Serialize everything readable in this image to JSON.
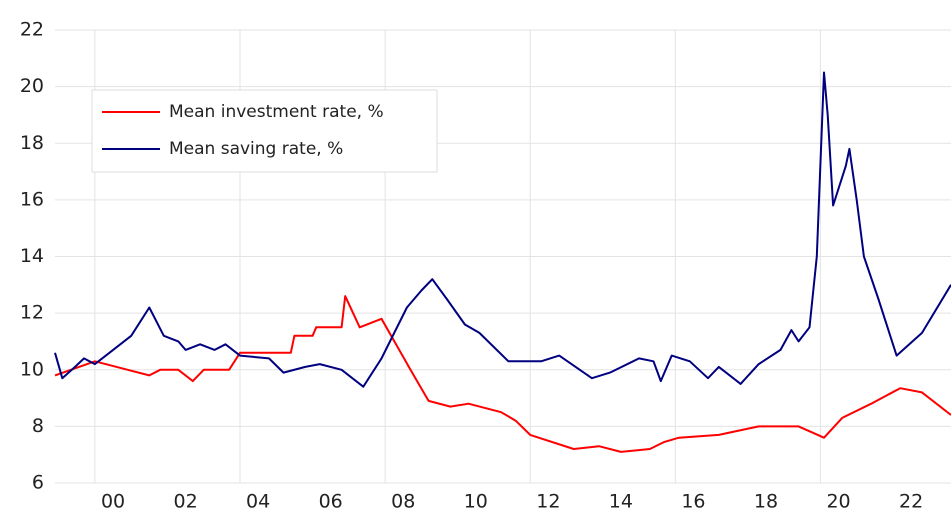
{
  "chart_data": {
    "type": "line",
    "series": [
      {
        "name": "Mean investment rate, %",
        "color": "#ff0000",
        "x": [
          1998.9,
          2000.0,
          2001.5,
          2001.8,
          2002.3,
          2002.7,
          2003.0,
          2003.7,
          2004.0,
          2005.4,
          2005.5,
          2006.0,
          2006.1,
          2006.8,
          2006.9,
          2007.3,
          2007.9,
          2008.3,
          2008.7,
          2009.2,
          2009.8,
          2010.3,
          2011.2,
          2011.6,
          2012.0,
          2013.2,
          2013.9,
          2014.5,
          2015.3,
          2015.7,
          2016.1,
          2017.2,
          2018.3,
          2019.4,
          2020.1,
          2020.6,
          2021.4,
          2022.2,
          2022.8,
          2023.6
        ],
        "values": [
          9.8,
          10.3,
          9.8,
          10.0,
          10.0,
          9.6,
          10.0,
          10.0,
          10.6,
          10.6,
          11.2,
          11.2,
          11.5,
          11.5,
          12.6,
          11.5,
          11.8,
          10.9,
          10.0,
          8.9,
          8.7,
          8.8,
          8.5,
          8.2,
          7.7,
          7.2,
          7.3,
          7.1,
          7.2,
          7.45,
          7.6,
          7.7,
          8.0,
          8.0,
          7.6,
          8.3,
          8.8,
          9.35,
          9.2,
          8.4
        ]
      },
      {
        "name": "Mean saving rate, %",
        "color": "#000080",
        "x": [
          1998.9,
          1999.1,
          1999.45,
          1999.7,
          2000.0,
          2000.4,
          2001.0,
          2001.5,
          2001.9,
          2002.3,
          2002.5,
          2002.9,
          2003.3,
          2003.6,
          2004.0,
          2004.8,
          2005.2,
          2005.8,
          2006.2,
          2006.8,
          2007.4,
          2007.9,
          2008.6,
          2009.0,
          2009.3,
          2009.7,
          2010.2,
          2010.6,
          2011.4,
          2012.3,
          2012.8,
          2013.7,
          2014.2,
          2015.0,
          2015.4,
          2015.6,
          2015.9,
          2016.4,
          2016.9,
          2017.2,
          2017.8,
          2018.3,
          2018.9,
          2019.2,
          2019.4,
          2019.7,
          2019.9,
          2020.1,
          2020.2,
          2020.35,
          2020.7,
          2020.8,
          2021.0,
          2021.2,
          2021.6,
          2022.1,
          2022.8,
          2023.6
        ],
        "values": [
          10.6,
          9.7,
          10.1,
          10.4,
          10.2,
          10.6,
          11.2,
          12.2,
          11.2,
          11.0,
          10.7,
          10.9,
          10.7,
          10.9,
          10.5,
          10.4,
          9.9,
          10.1,
          10.2,
          10.0,
          9.4,
          10.4,
          12.2,
          12.8,
          13.2,
          12.5,
          11.6,
          11.3,
          10.3,
          10.3,
          10.5,
          9.7,
          9.9,
          10.4,
          10.3,
          9.6,
          10.5,
          10.3,
          9.7,
          10.1,
          9.5,
          10.2,
          10.7,
          11.4,
          11.0,
          11.5,
          14.0,
          20.5,
          19.0,
          15.8,
          17.2,
          17.8,
          16.0,
          14.0,
          12.5,
          10.5,
          11.3,
          13.0
        ]
      }
    ],
    "xlim": [
      1998.9,
      2023.6
    ],
    "xticks": [
      {
        "value": 2000,
        "label": "00"
      },
      {
        "value": 2002,
        "label": "02"
      },
      {
        "value": 2004,
        "label": "04"
      },
      {
        "value": 2006,
        "label": "06"
      },
      {
        "value": 2008,
        "label": "08"
      },
      {
        "value": 2010,
        "label": "10"
      },
      {
        "value": 2012,
        "label": "12"
      },
      {
        "value": 2014,
        "label": "14"
      },
      {
        "value": 2016,
        "label": "16"
      },
      {
        "value": 2018,
        "label": "18"
      },
      {
        "value": 2020,
        "label": "20"
      },
      {
        "value": 2022,
        "label": "22"
      }
    ],
    "ylim": [
      6,
      22
    ],
    "yticks": [
      6,
      8,
      10,
      12,
      14,
      16,
      18,
      20,
      22
    ],
    "grid": true,
    "legend": "upper left"
  }
}
